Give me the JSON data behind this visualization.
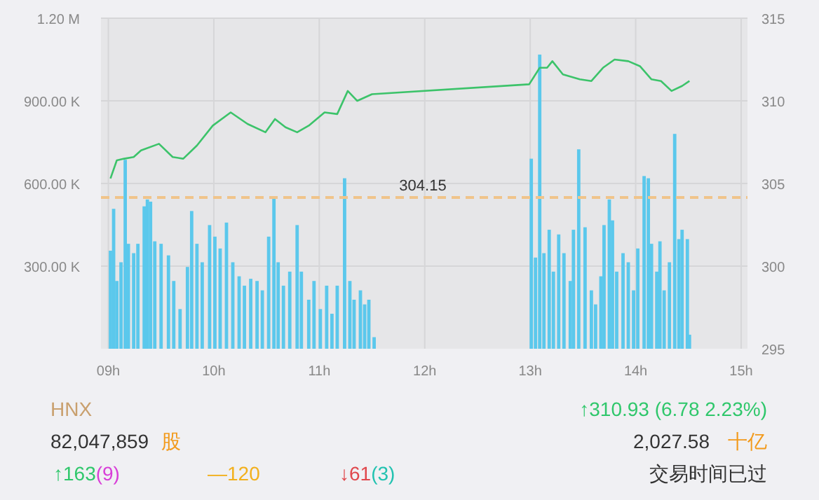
{
  "chart_data": [
    {
      "type": "bar",
      "xlim": [
        8.93,
        15.06
      ],
      "xticks": [
        {
          "value": 9,
          "label": "09h"
        },
        {
          "value": 10,
          "label": "10h"
        },
        {
          "value": 11,
          "label": "11h"
        },
        {
          "value": 12,
          "label": "12h"
        },
        {
          "value": 13,
          "label": "13h"
        },
        {
          "value": 14,
          "label": "14h"
        },
        {
          "value": 15,
          "label": "15h"
        }
      ],
      "ylim": [
        0,
        1200000
      ],
      "yticks": [
        {
          "value": 300000,
          "label": "300.00 K"
        },
        {
          "value": 600000,
          "label": "600.00 K"
        },
        {
          "value": 900000,
          "label": "900.00 K"
        },
        {
          "value": 1200000,
          "label": "1.20 M"
        }
      ],
      "y2lim": [
        295,
        315
      ],
      "y2ticks": [
        295,
        300,
        305,
        310,
        315
      ],
      "grid": true,
      "ref_lines": [
        {
          "axis": "y2",
          "value": 304.15,
          "label": "304.15",
          "color": "#f0c48a",
          "line_style": "dashed"
        }
      ],
      "series": [
        {
          "type": "bar",
          "color": "#5bc8ec",
          "x": [
            9.02,
            9.05,
            9.08,
            9.12,
            9.16,
            9.19,
            9.24,
            9.28,
            9.34,
            9.37,
            9.4,
            9.44,
            9.5,
            9.57,
            9.62,
            9.68,
            9.75,
            9.79,
            9.84,
            9.89,
            9.96,
            10.01,
            10.06,
            10.12,
            10.18,
            10.24,
            10.29,
            10.35,
            10.41,
            10.46,
            10.52,
            10.57,
            10.61,
            10.66,
            10.72,
            10.79,
            10.83,
            10.9,
            10.95,
            11.01,
            11.07,
            11.12,
            11.17,
            11.24,
            11.29,
            11.33,
            11.39,
            11.43,
            11.47,
            11.52,
            13.01,
            13.05,
            13.09,
            13.13,
            13.18,
            13.22,
            13.27,
            13.32,
            13.38,
            13.41,
            13.46,
            13.52,
            13.58,
            13.62,
            13.67,
            13.7,
            13.75,
            13.78,
            13.82,
            13.88,
            13.93,
            13.98,
            14.02,
            14.08,
            14.12,
            14.15,
            14.2,
            14.23,
            14.27,
            14.32,
            14.37,
            14.41,
            14.44,
            14.49,
            14.51
          ],
          "values": [
            356000,
            508000,
            246000,
            314000,
            686000,
            381000,
            347000,
            381000,
            517000,
            542000,
            534000,
            390000,
            381000,
            339000,
            246000,
            144000,
            297000,
            500000,
            381000,
            314000,
            449000,
            407000,
            364000,
            458000,
            314000,
            263000,
            229000,
            254000,
            246000,
            212000,
            407000,
            551000,
            314000,
            229000,
            280000,
            449000,
            280000,
            178000,
            246000,
            144000,
            229000,
            127000,
            229000,
            619000,
            246000,
            178000,
            212000,
            161000,
            178000,
            42000,
            690000,
            331000,
            1068000,
            347000,
            432000,
            280000,
            415000,
            347000,
            246000,
            432000,
            724000,
            441000,
            212000,
            161000,
            263000,
            449000,
            542000,
            466000,
            280000,
            347000,
            314000,
            212000,
            364000,
            627000,
            619000,
            381000,
            280000,
            390000,
            212000,
            314000,
            780000,
            398000,
            432000,
            398000,
            51000
          ]
        },
        {
          "type": "line",
          "axis": "y2",
          "color": "#3cc36a",
          "x": [
            9.02,
            9.08,
            9.15,
            9.24,
            9.31,
            9.48,
            9.61,
            9.71,
            9.84,
            9.99,
            10.16,
            10.32,
            10.49,
            10.58,
            10.68,
            10.79,
            10.9,
            11.05,
            11.17,
            11.27,
            11.36,
            11.5,
            12.99,
            13.09,
            13.16,
            13.21,
            13.31,
            13.47,
            13.58,
            13.69,
            13.8,
            13.93,
            14.04,
            14.15,
            14.24,
            14.34,
            14.44,
            14.51
          ],
          "values": [
            305.3,
            306.4,
            306.5,
            306.6,
            307.0,
            307.4,
            306.6,
            306.5,
            307.3,
            308.5,
            309.3,
            308.6,
            308.1,
            308.9,
            308.4,
            308.1,
            308.5,
            309.3,
            309.2,
            310.6,
            310.0,
            310.4,
            311.0,
            312.0,
            312.0,
            312.4,
            311.6,
            311.3,
            311.2,
            312.0,
            312.5,
            312.4,
            312.1,
            311.3,
            311.2,
            310.6,
            310.9,
            311.2
          ]
        }
      ]
    },
    {
      "type": "other",
      "annotations": [
        "HNX",
        "↑310.93  (6.78  2.23%)",
        "82,047,859",
        "股",
        "2,027.58",
        "十亿",
        "↑163",
        "(9)",
        "—120",
        "↓61",
        "(3)",
        "交易时间已过"
      ],
      "colors": [
        "#c9a06e",
        "#2fc76b",
        "#333333",
        "#f29a1c",
        "#333333",
        "#f29a1c",
        "#2fc76b",
        "#d83fd8",
        "#f2b01c",
        "#e0474c",
        "#22c2b0",
        "#333333"
      ]
    }
  ]
}
